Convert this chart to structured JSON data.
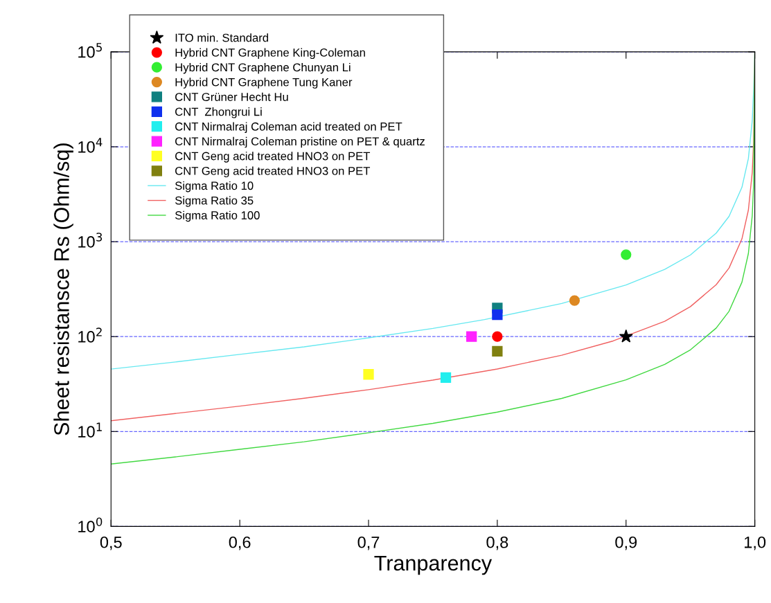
{
  "chart_data": {
    "type": "scatter",
    "xlabel": "Tranparency",
    "ylabel": "Sheet resistansce Rs (Ohm/sq)",
    "log": "y",
    "xlim": [
      0.5,
      1.0
    ],
    "ylim": [
      1,
      100000
    ],
    "xticks": [
      {
        "value": 0.5,
        "label": "0,5"
      },
      {
        "value": 0.6,
        "label": "0,6"
      },
      {
        "value": 0.7,
        "label": "0,7"
      },
      {
        "value": 0.8,
        "label": "0,8"
      },
      {
        "value": 0.9,
        "label": "0,9"
      },
      {
        "value": 1.0,
        "label": "1,0"
      }
    ],
    "yticks": [
      {
        "value": 1,
        "label": "10$^{0}$"
      },
      {
        "value": 10,
        "label": "10$^{1}$"
      },
      {
        "value": 100,
        "label": "10$^{2}$"
      },
      {
        "value": 1000,
        "label": "10$^{3}$"
      },
      {
        "value": 10000,
        "label": "10$^{4}$"
      },
      {
        "value": 100000,
        "label": "10$^{5}$"
      }
    ],
    "grid": "y",
    "legend": "top left",
    "series": [
      {
        "name": "ITO min. Standard",
        "marker": "star",
        "color": "#000000",
        "x": [
          0.9
        ],
        "values": [
          100
        ]
      },
      {
        "name": "Hybrid CNT Graphene King-Coleman",
        "marker": "circle",
        "color": "#ff0000",
        "x": [
          0.8
        ],
        "values": [
          100
        ]
      },
      {
        "name": "Hybrid CNT Graphene Chunyan Li",
        "marker": "circle",
        "color": "#33ee33",
        "x": [
          0.9
        ],
        "values": [
          730
        ]
      },
      {
        "name": "Hybrid CNT Graphene Tung Kaner",
        "marker": "circle",
        "color": "#dd8822",
        "x": [
          0.86
        ],
        "values": [
          240
        ]
      },
      {
        "name": "CNT Grüner Hecht Hu",
        "marker": "square",
        "color": "#108080",
        "x": [
          0.8
        ],
        "values": [
          200
        ]
      },
      {
        "name": "CNT  Zhongrui Li",
        "marker": "square",
        "color": "#1030ee",
        "x": [
          0.8
        ],
        "values": [
          170
        ]
      },
      {
        "name": "CNT Nirmalraj Coleman acid treated on PET",
        "marker": "square",
        "color": "#22eeee",
        "x": [
          0.76
        ],
        "values": [
          37
        ]
      },
      {
        "name": "CNT Nirmalraj Coleman pristine on PET & quartz",
        "marker": "square",
        "color": "#ff22ff",
        "x": [
          0.78
        ],
        "values": [
          100
        ]
      },
      {
        "name": "CNT Geng acid treated HNO3 on PET",
        "type": "scatter",
        "marker": "square",
        "color": "#ffff22",
        "x": [
          0.7
        ],
        "values": [
          40
        ]
      },
      {
        "name": "CNT Geng acid treated HNO3 on PET",
        "type": "scatter",
        "marker": "square",
        "color": "#808010",
        "x": [
          0.8
        ],
        "values": [
          70
        ]
      },
      {
        "name": "Sigma Ratio 10",
        "type": "line",
        "marker": "none",
        "color": "#66e8f0",
        "x": [
          0.5,
          0.55,
          0.6,
          0.65,
          0.7,
          0.75,
          0.79,
          0.85,
          0.9,
          0.93,
          0.95,
          0.97,
          0.98,
          0.99,
          0.995,
          0.998,
          0.999,
          1.0
        ],
        "values": [
          45.5,
          54,
          65,
          78,
          97,
          122,
          151,
          223,
          350,
          510,
          725,
          1230,
          1850,
          3740,
          7500,
          18800,
          37700,
          100000
        ]
      },
      {
        "name": "Sigma Ratio 35",
        "type": "line",
        "marker": "none",
        "color": "#f06060",
        "x": [
          0.5,
          0.55,
          0.6,
          0.65,
          0.7,
          0.75,
          0.8,
          0.85,
          0.89,
          0.93,
          0.95,
          0.97,
          0.98,
          0.99,
          0.995,
          0.998,
          0.999,
          1.0
        ],
        "values": [
          13,
          15.5,
          18.5,
          22.4,
          27.6,
          34.8,
          45.6,
          63.6,
          90,
          145,
          207,
          352,
          528,
          1070,
          2150,
          5370,
          10800,
          100000
        ]
      },
      {
        "name": "Sigma Ratio 100",
        "type": "line",
        "marker": "none",
        "color": "#40d840",
        "x": [
          0.5,
          0.55,
          0.6,
          0.65,
          0.7,
          0.75,
          0.8,
          0.85,
          0.9,
          0.93,
          0.95,
          0.97,
          0.98,
          0.99,
          0.995,
          0.998,
          0.999,
          1.0
        ],
        "values": [
          4.55,
          5.4,
          6.5,
          7.8,
          9.7,
          12.2,
          16,
          22.3,
          35,
          51,
          72.5,
          123,
          185,
          374,
          750,
          1880,
          3770,
          100000
        ]
      }
    ]
  }
}
